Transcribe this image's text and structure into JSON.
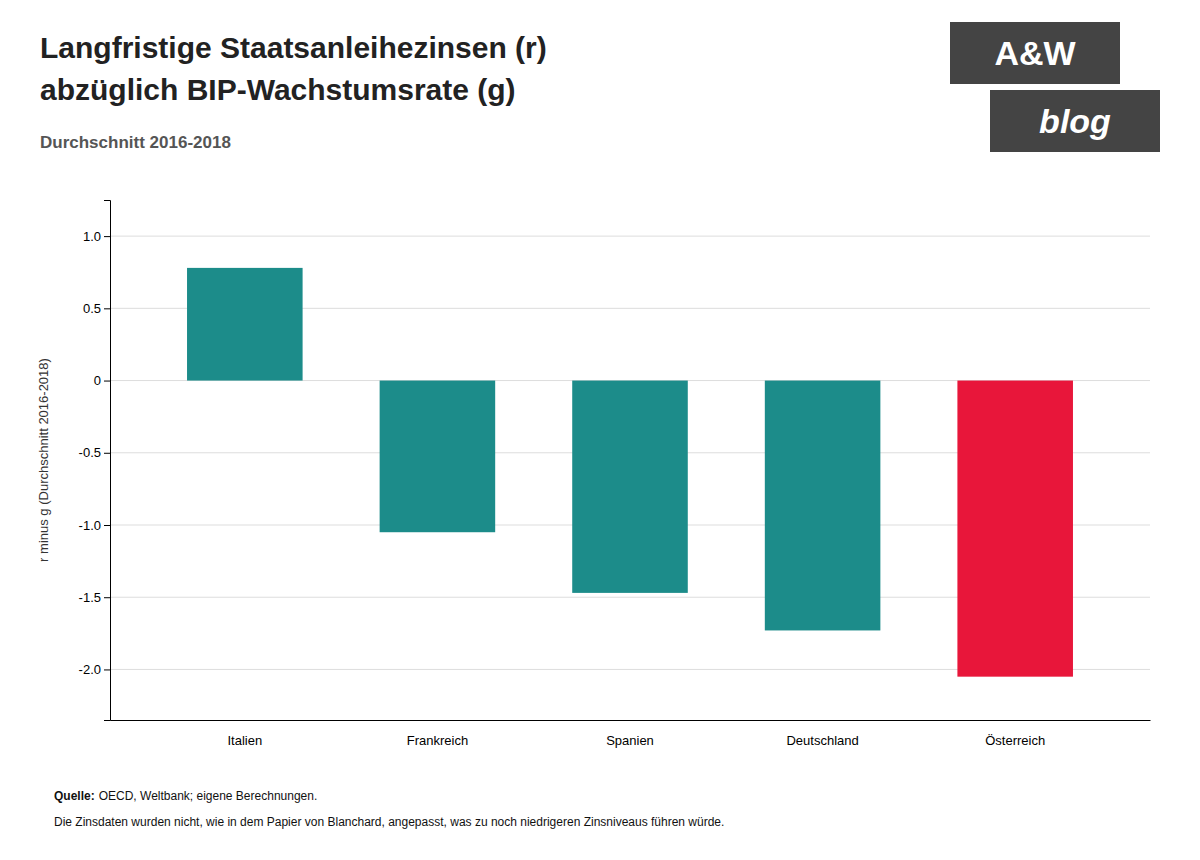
{
  "chart_data": {
    "type": "bar",
    "title": [
      "Langfristige Staatsanleihezinsen (r)",
      "abzüglich BIP-Wachstumsrate (g)"
    ],
    "subtitle": "Durchschnitt 2016-2018",
    "ylabel": "r minus g (Durchschnitt 2016-2018)",
    "categories": [
      "Italien",
      "Frankreich",
      "Spanien",
      "Deutschland",
      "Österreich"
    ],
    "values": [
      0.78,
      -1.05,
      -1.47,
      -1.73,
      -2.05
    ],
    "colors": [
      "#1c8c8a",
      "#1c8c8a",
      "#1c8c8a",
      "#1c8c8a",
      "#e8163a"
    ],
    "ylim": [
      -2.35,
      1.25
    ],
    "yticks": [
      {
        "value": 1.0,
        "label": "1.0"
      },
      0.5,
      0,
      -0.5,
      {
        "value": -1.0,
        "label": "-1.0"
      },
      -1.5,
      {
        "value": -2.0,
        "label": "-2.0"
      }
    ],
    "grid": true,
    "annotations": [
      "Quelle:",
      "OECD, Weltbank; eigene Berechnungen.",
      "Die Zinsdaten wurden nicht, wie in dem Papier von Blanchard, angepasst, was zu noch niedrigeren Zinsniveaus führen würde.",
      "A&W",
      "blog"
    ]
  }
}
